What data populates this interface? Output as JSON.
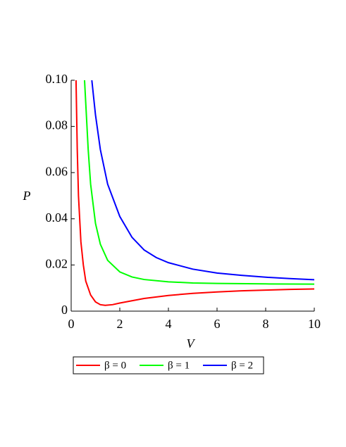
{
  "chart_data": {
    "type": "line",
    "xlabel": "V",
    "ylabel": "P",
    "xlim": [
      0,
      10
    ],
    "ylim": [
      0,
      0.1
    ],
    "xticks": [
      0,
      2,
      4,
      6,
      8,
      10
    ],
    "yticks": [
      0,
      0.02,
      0.04,
      0.06,
      0.08,
      {
        "value": 0.1,
        "label": "0.10"
      }
    ],
    "legend": "bottom",
    "series": [
      {
        "name": "β = 0",
        "color": "#ff0000",
        "x": [
          0.2,
          0.25,
          0.3,
          0.4,
          0.5,
          0.6,
          0.8,
          1.0,
          1.2,
          1.4,
          1.7,
          2,
          3,
          4,
          5,
          6,
          7,
          8,
          9,
          10
        ],
        "values": [
          0.1,
          0.07,
          0.05,
          0.03,
          0.02,
          0.013,
          0.007,
          0.004,
          0.0028,
          0.0025,
          0.0028,
          0.0035,
          0.0055,
          0.0068,
          0.0077,
          0.0083,
          0.0088,
          0.0091,
          0.0094,
          0.0096
        ]
      },
      {
        "name": "β = 1",
        "color": "#00ff00",
        "x": [
          0.55,
          0.7,
          0.8,
          1.0,
          1.2,
          1.5,
          2,
          2.5,
          3,
          4,
          5,
          6,
          8,
          10
        ],
        "values": [
          0.1,
          0.07,
          0.055,
          0.038,
          0.029,
          0.022,
          0.017,
          0.0148,
          0.0137,
          0.0127,
          0.0122,
          0.012,
          0.0118,
          0.0117
        ]
      },
      {
        "name": "β = 2",
        "color": "#0000ff",
        "x": [
          0.85,
          1.0,
          1.2,
          1.5,
          2,
          2.5,
          3,
          3.5,
          4,
          5,
          6,
          7,
          8,
          9,
          10
        ],
        "values": [
          0.1,
          0.085,
          0.07,
          0.055,
          0.041,
          0.032,
          0.0265,
          0.0232,
          0.021,
          0.0182,
          0.0165,
          0.0155,
          0.0147,
          0.0141,
          0.0136
        ]
      }
    ]
  }
}
